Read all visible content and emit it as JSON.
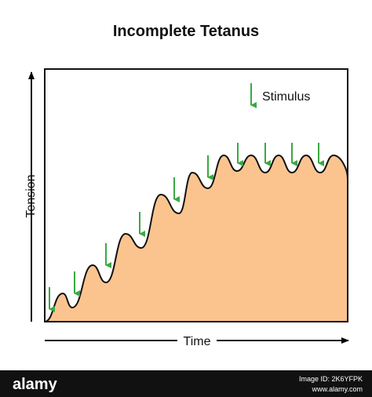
{
  "title": "Incomplete Tetanus",
  "legend": "Stimulus",
  "y_axis_label": "Tension",
  "x_axis_label": "Time",
  "watermark": {
    "brand": "alamy",
    "image_id": "Image ID: 2K6YFPK",
    "url": "www.alamy.com"
  }
}
